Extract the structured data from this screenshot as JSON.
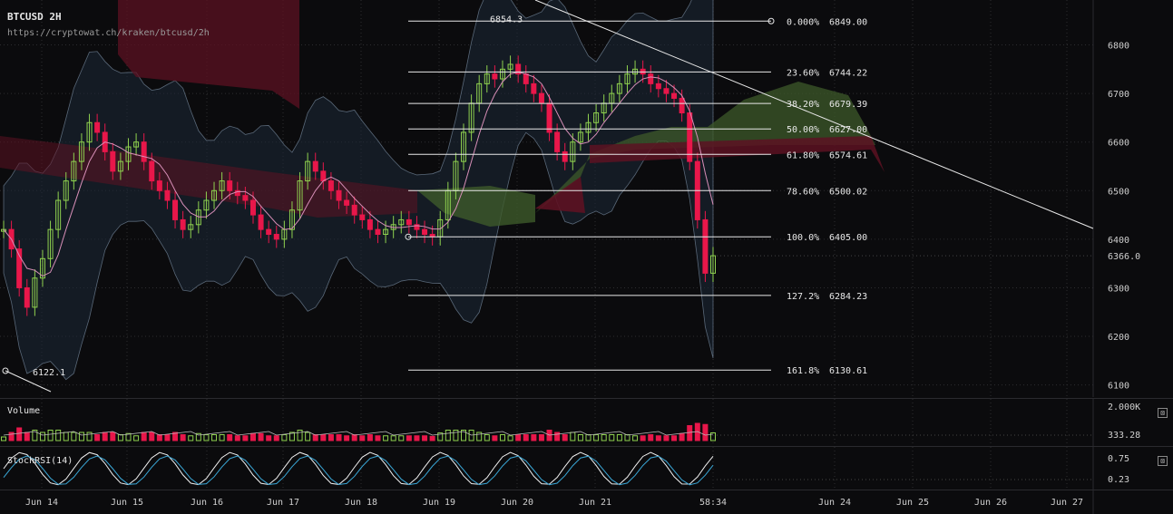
{
  "header": {
    "title": "BTCUSD 2H",
    "url": "https://cryptowat.ch/kraken/btcusd/2h"
  },
  "panels": {
    "volume_label": "Volume",
    "rsi_label": "StochRSI(14)",
    "close_glyph": "⊠"
  },
  "colors": {
    "bull": "#8fd14f",
    "bear": "#e8174a",
    "bg": "#0b0b0d",
    "grid": "#2c2c30",
    "cloud_green": "#3d5a2a",
    "cloud_red": "#5c1222",
    "band": "#1e2a38",
    "white": "#e8e8e8"
  },
  "chart_data": {
    "type": "line",
    "symbol": "BTCUSD",
    "interval": "2H",
    "ylim": [
      6090,
      6870
    ],
    "y_ticks": [
      "6800",
      "6700",
      "6600",
      "6500",
      "6400",
      "6300",
      "6200",
      "6100"
    ],
    "x_ticks": [
      "Jun 14",
      "Jun 15",
      "Jun 16",
      "Jun 17",
      "Jun 18",
      "Jun 19",
      "Jun 20",
      "Jun 21",
      "58:34",
      "Jun 24",
      "Jun 25",
      "Jun 26",
      "Jun 27"
    ],
    "last_price": "6366.0",
    "high_label": "6854.3",
    "low_label": "6122.1",
    "fib_levels": [
      {
        "pct": "0.000%",
        "price": "6849.00"
      },
      {
        "pct": "23.60%",
        "price": "6744.22"
      },
      {
        "pct": "38.20%",
        "price": "6679.39"
      },
      {
        "pct": "50.00%",
        "price": "6627.00"
      },
      {
        "pct": "61.80%",
        "price": "6574.61"
      },
      {
        "pct": "78.60%",
        "price": "6500.02"
      },
      {
        "pct": "100.0%",
        "price": "6405.00"
      },
      {
        "pct": "127.2%",
        "price": "6284.23"
      },
      {
        "pct": "161.8%",
        "price": "6130.61"
      }
    ],
    "volume_ticks": [
      "2.000K",
      "333.28"
    ],
    "rsi_ticks": [
      "0.75",
      "0.23"
    ],
    "grid": true,
    "close_series": [
      6420,
      6380,
      6300,
      6260,
      6320,
      6360,
      6420,
      6480,
      6520,
      6560,
      6600,
      6640,
      6620,
      6580,
      6540,
      6560,
      6590,
      6600,
      6560,
      6520,
      6500,
      6480,
      6440,
      6420,
      6430,
      6460,
      6480,
      6500,
      6520,
      6500,
      6490,
      6480,
      6450,
      6420,
      6410,
      6400,
      6420,
      6460,
      6520,
      6560,
      6540,
      6520,
      6500,
      6480,
      6470,
      6450,
      6440,
      6420,
      6410,
      6420,
      6430,
      6440,
      6430,
      6420,
      6410,
      6405,
      6440,
      6500,
      6560,
      6620,
      6680,
      6720,
      6740,
      6730,
      6750,
      6760,
      6740,
      6720,
      6700,
      6680,
      6620,
      6580,
      6560,
      6600,
      6620,
      6640,
      6660,
      6680,
      6700,
      6720,
      6740,
      6750,
      6740,
      6720,
      6710,
      6700,
      6690,
      6660,
      6560,
      6440,
      6330,
      6366
    ]
  }
}
